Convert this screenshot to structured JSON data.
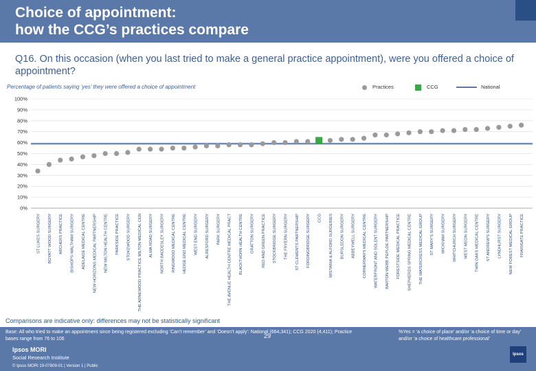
{
  "header": {
    "title": "Choice of appointment:\nhow the CCG’s practices compare"
  },
  "question": "Q16. On this occasion (when you last tried to make a general practice appointment), were you offered a choice of appointment?",
  "subtitle": "Percentage of patients saying ‘yes’ they were offered a choice of appointment",
  "legend": {
    "practices": "Practices",
    "ccg": "CCG",
    "national": "National"
  },
  "colors": {
    "practice": "#9a9a9a",
    "ccg": "#3aa845",
    "national": "#5a78a8",
    "header": "#5a78a8"
  },
  "note": "Comparisons are indicative only: differences may not be statistically significant",
  "footer": {
    "base": "Base: All who tried to make an appointment since being registered excluding ‘Can’t remember’ and ‘Doesn’t apply’: National (664,341); CCG 2020 (4,411); Practice bases range from 76 to 106",
    "definition": "%Yes = ‘a choice of place’ and/or ‘a choice of time or day’ and/or ‘a choice of healthcare professional’",
    "ipsos": "Ipsos MORI",
    "sri": "Social Research Institute",
    "copyright": "© Ipsos MORI    19-07809-01 | Version 1 | Public",
    "page": "29",
    "badge": "Ipsos"
  },
  "chart_data": {
    "type": "bar",
    "title": "",
    "ylim": [
      0,
      100
    ],
    "yticks": [
      "0%",
      "10%",
      "20%",
      "30%",
      "40%",
      "50%",
      "60%",
      "70%",
      "80%",
      "90%",
      "100%"
    ],
    "national": 59,
    "categories": [
      "ST LUKES SURGERY",
      "BOYATT WOOD SURGERY",
      "ARCHERS PRACTICE",
      "BISHOPS WALTHAM SURGERY",
      "ADELAIDE MEDICAL CENTRE",
      "NEW HORIZONS MEDICAL PARTNERSHIP",
      "NEW MILTON HEALTH CENTRE",
      "PARKSIDE PRACTICE",
      "STOKEWOOD SURGERY",
      "THE ARNEWOOD PRACTICE MILTON MEDICAL CEN",
      "ALMA ROAD SURGERY",
      "NORTH BADDESLEY SURGERY",
      "RINGWOOD MEDICAL CENTRE",
      "HEDGE END MEDICAL CENTRE",
      "WEST END SURGERY",
      "ALRESFORD SURGERY",
      "PARK SURGERY",
      "THE AVENUE HEALTH CENTRE MEDICAL PRACT",
      "BLACKTHORN HEALTH CENTRE",
      "GRATTON SURGERY",
      "RED AND GREEN PRACTICE",
      "STOCKBRIDGE SURGERY",
      "THE FRYERN SURGERY",
      "ST CLEMENTS PARTNERSHIP",
      "FORDINGBRIDGE SURGERY",
      "CCG",
      "WISTARIA & ALFORD SURGERIES",
      "BURSLEDON SURGERY",
      "ABBEYWELL SURGERY",
      "CORNERWAYS MEDICAL CENTRE",
      "WATERFRONT AND SOLENT SURGERY",
      "BARTON WEBB PEPLOE PARTNERSHIP",
      "FORESTSIDE MEDICAL PRACTICE",
      "SHEPHERDS SPRING MEDICAL CENTRE",
      "THE WATERCRESS MEDICAL GROUP",
      "ST MARY'S SURGERY",
      "WICKHAM SURGERY",
      "WHITCHURCH SURGERY",
      "WEST MEON SURGERY",
      "TWIN OAKS MEDICAL CENTRE",
      "ST ANDREW'S SURGERY",
      "LYNDHURST SURGERY",
      "NEW FOREST MEDICAL GROUP",
      "FRARIGATE PRACTICE"
    ],
    "values": [
      34,
      40,
      44,
      45,
      47,
      48,
      50,
      50,
      51,
      54,
      54,
      54,
      55,
      55,
      56,
      57,
      57,
      58,
      58,
      58,
      59,
      60,
      60,
      61,
      61,
      62,
      62,
      63,
      63,
      64,
      67,
      67,
      68,
      69,
      70,
      70,
      71,
      71,
      72,
      72,
      73,
      74,
      75,
      76
    ],
    "ccg_index": 25
  }
}
